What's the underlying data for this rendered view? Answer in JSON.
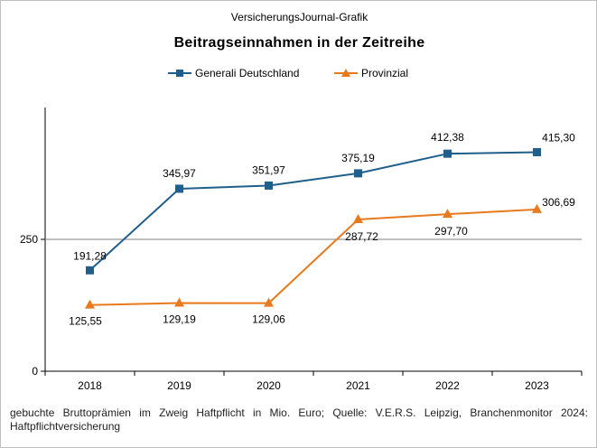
{
  "header": {
    "source": "VersicherungsJournal-Grafik",
    "title": "Beitragseinnahmen  in der Zeitreihe"
  },
  "footnote": "gebuchte Bruttoprämien im Zweig Haftpflicht in Mio. Euro; Quelle: V.E.R.S. Leipzig, Branchenmonitor 2024: Haftpflichtversicherung",
  "chart_data": {
    "type": "line",
    "title": "Beitragseinnahmen  in der Zeitreihe",
    "xlabel": "",
    "ylabel": "",
    "categories": [
      "2018",
      "2019",
      "2020",
      "2021",
      "2022",
      "2023"
    ],
    "y_ticks": [
      0,
      250
    ],
    "y_tick_labels": [
      "0",
      "250"
    ],
    "ylim": [
      0,
      500
    ],
    "reference_line": 250,
    "legend_position": "top",
    "series": [
      {
        "name": "Generali Deutschland",
        "color": "#1f5f8b",
        "marker": "square",
        "values": [
          191.28,
          345.97,
          351.97,
          375.19,
          412.38,
          415.3
        ],
        "labels": [
          "191,28",
          "345,97",
          "351,97",
          "375,19",
          "412,38",
          "415,30"
        ]
      },
      {
        "name": "Provinzial",
        "color": "#e8791d",
        "marker": "triangle",
        "values": [
          125.55,
          129.19,
          129.06,
          287.72,
          297.7,
          306.69
        ],
        "labels": [
          "125,55",
          "129,19",
          "129,06",
          "287,72",
          "297,70",
          "306,69"
        ]
      }
    ]
  }
}
